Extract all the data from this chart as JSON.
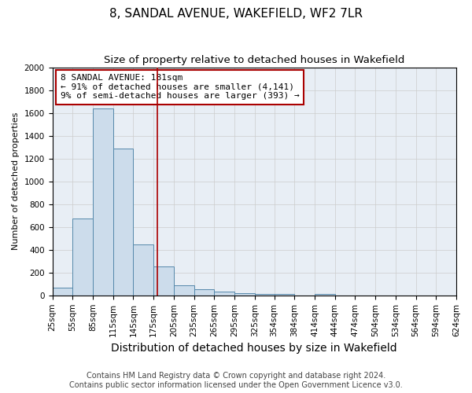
{
  "title": "8, SANDAL AVENUE, WAKEFIELD, WF2 7LR",
  "subtitle": "Size of property relative to detached houses in Wakefield",
  "xlabel": "Distribution of detached houses by size in Wakefield",
  "ylabel": "Number of detached properties",
  "footnote1": "Contains HM Land Registry data © Crown copyright and database right 2024.",
  "footnote2": "Contains public sector information licensed under the Open Government Licence v3.0.",
  "bins": [
    "25sqm",
    "55sqm",
    "85sqm",
    "115sqm",
    "145sqm",
    "175sqm",
    "205sqm",
    "235sqm",
    "265sqm",
    "295sqm",
    "325sqm",
    "354sqm",
    "384sqm",
    "414sqm",
    "444sqm",
    "474sqm",
    "504sqm",
    "534sqm",
    "564sqm",
    "594sqm",
    "624sqm"
  ],
  "bin_edges": [
    25,
    55,
    85,
    115,
    145,
    175,
    205,
    235,
    265,
    295,
    325,
    354,
    384,
    414,
    444,
    474,
    504,
    534,
    564,
    594,
    624
  ],
  "values": [
    65,
    675,
    1640,
    1285,
    450,
    255,
    90,
    55,
    30,
    20,
    15,
    10,
    0,
    15,
    0,
    0,
    0,
    0,
    0,
    0
  ],
  "bar_color": "#ccdceb",
  "bar_edge_color": "#5588aa",
  "property_size": 181,
  "red_line_color": "#aa0000",
  "annotation_line1": "8 SANDAL AVENUE: 181sqm",
  "annotation_line2": "← 91% of detached houses are smaller (4,141)",
  "annotation_line3": "9% of semi-detached houses are larger (393) →",
  "annotation_box_color": "#aa0000",
  "ylim": [
    0,
    2000
  ],
  "yticks": [
    0,
    200,
    400,
    600,
    800,
    1000,
    1200,
    1400,
    1600,
    1800,
    2000
  ],
  "grid_color": "#cccccc",
  "background_color": "#e8eef5",
  "title_fontsize": 11,
  "subtitle_fontsize": 9.5,
  "xlabel_fontsize": 10,
  "ylabel_fontsize": 8,
  "tick_fontsize": 7.5,
  "annotation_fontsize": 8,
  "footnote_fontsize": 7
}
